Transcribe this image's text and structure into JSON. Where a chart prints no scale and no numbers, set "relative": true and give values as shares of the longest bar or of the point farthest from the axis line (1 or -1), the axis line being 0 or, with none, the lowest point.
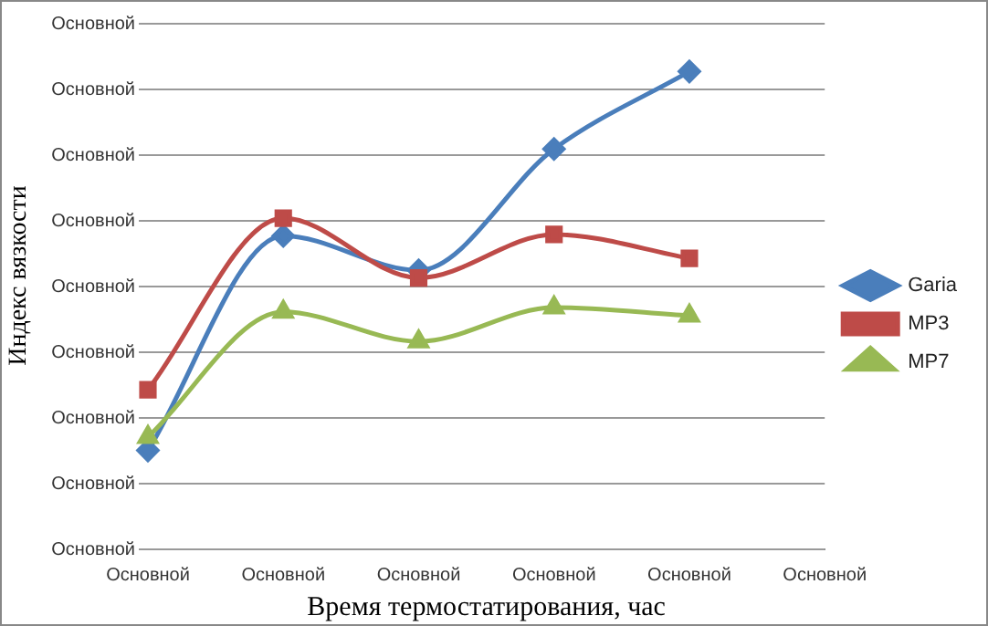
{
  "chart_data": {
    "type": "line",
    "xlabel": "Время термостатирования, час",
    "ylabel": "Индекс вязкости",
    "relative": true,
    "categories": [
      "Основной",
      "Основной",
      "Основной",
      "Основной",
      "Основной",
      "Основной"
    ],
    "annotations": [
      "Основной",
      "Основной",
      "Основной",
      "Основной",
      "Основной",
      "Основной",
      "Основной",
      "Основной",
      "Основной"
    ],
    "series": [
      {
        "name": "Garia",
        "color": "#4a7ebb",
        "marker": "diamond",
        "values": [
          0.207,
          0.656,
          0.584,
          0.838,
          1,
          null
        ]
      },
      {
        "name": "MP3",
        "color": "#be4b48",
        "marker": "square",
        "values": [
          0.334,
          0.693,
          0.568,
          0.659,
          0.609,
          null
        ]
      },
      {
        "name": "MP7",
        "color": "#98b954",
        "marker": "triangle",
        "values": [
          0.235,
          0.497,
          0.435,
          0.506,
          0.489,
          null
        ]
      }
    ],
    "grid": "y",
    "legend": "right",
    "line_style": "solid"
  }
}
